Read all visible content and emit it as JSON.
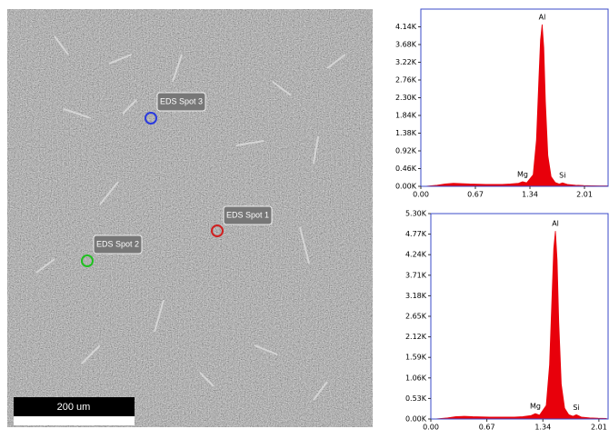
{
  "image": {
    "labels": [
      "EDS Spot 3",
      "EDS Spot 1",
      "EDS Spot 2"
    ],
    "scale_bar": "200 um"
  },
  "chart_data": [
    {
      "type": "area",
      "color": "#e8000b",
      "x": [
        0.05,
        0.2,
        0.3,
        0.4,
        0.5,
        0.6,
        0.7,
        0.8,
        0.9,
        1.0,
        1.1,
        1.2,
        1.25,
        1.3,
        1.38,
        1.42,
        1.45,
        1.47,
        1.49,
        1.51,
        1.53,
        1.56,
        1.6,
        1.65,
        1.7,
        1.74,
        1.8,
        1.9,
        2.0,
        2.1,
        2.2,
        2.3
      ],
      "values": [
        0,
        30,
        60,
        80,
        70,
        60,
        55,
        50,
        50,
        50,
        60,
        80,
        120,
        90,
        300,
        1200,
        2800,
        3800,
        4200,
        3600,
        2200,
        800,
        250,
        100,
        60,
        90,
        50,
        30,
        20,
        15,
        10,
        10
      ],
      "xlim": [
        0,
        2.3
      ],
      "xticks": [
        {
          "value": 0,
          "label": "0.00"
        },
        {
          "value": 0.67,
          "label": "0.67"
        },
        {
          "value": 1.34,
          "label": "1.34"
        },
        {
          "value": 2.01,
          "label": "2.01"
        }
      ],
      "ylim": [
        0,
        4600
      ],
      "yticks": [
        {
          "value": 0,
          "label": "0.00K"
        },
        {
          "value": 460,
          "label": "0.46K"
        },
        {
          "value": 920,
          "label": "0.92K"
        },
        {
          "value": 1380,
          "label": "1.38K"
        },
        {
          "value": 1840,
          "label": "1.84K"
        },
        {
          "value": 2300,
          "label": "2.30K"
        },
        {
          "value": 2760,
          "label": "2.76K"
        },
        {
          "value": 3220,
          "label": "3.22K"
        },
        {
          "value": 3680,
          "label": "3.68K"
        },
        {
          "value": 4140,
          "label": "4.14K"
        }
      ],
      "annotations": [
        {
          "text": "Al",
          "x": 1.49
        },
        {
          "text": "Mg",
          "x": 1.25
        },
        {
          "text": "Si",
          "x": 1.74
        }
      ]
    },
    {
      "type": "area",
      "color": "#e8000b",
      "x": [
        0.05,
        0.2,
        0.3,
        0.4,
        0.5,
        0.6,
        0.7,
        0.8,
        0.9,
        1.0,
        1.1,
        1.2,
        1.25,
        1.3,
        1.38,
        1.42,
        1.45,
        1.47,
        1.49,
        1.51,
        1.53,
        1.56,
        1.6,
        1.65,
        1.7,
        1.74,
        1.8,
        1.9,
        2.0,
        2.1
      ],
      "values": [
        0,
        30,
        60,
        70,
        60,
        55,
        50,
        50,
        50,
        50,
        60,
        90,
        140,
        100,
        350,
        1400,
        3200,
        4400,
        4850,
        4100,
        2500,
        900,
        280,
        110,
        70,
        110,
        50,
        30,
        20,
        15
      ],
      "xlim": [
        0,
        2.12
      ],
      "xticks": [
        {
          "value": 0,
          "label": "0.00"
        },
        {
          "value": 0.67,
          "label": "0.67"
        },
        {
          "value": 1.34,
          "label": "1.34"
        },
        {
          "value": 2.01,
          "label": "2.01"
        }
      ],
      "ylim": [
        0,
        5300
      ],
      "yticks": [
        {
          "value": 0,
          "label": "0.00K"
        },
        {
          "value": 530,
          "label": "0.53K"
        },
        {
          "value": 1060,
          "label": "1.06K"
        },
        {
          "value": 1590,
          "label": "1.59K"
        },
        {
          "value": 2120,
          "label": "2.12K"
        },
        {
          "value": 2650,
          "label": "2.65K"
        },
        {
          "value": 3180,
          "label": "3.18K"
        },
        {
          "value": 3710,
          "label": "3.71K"
        },
        {
          "value": 4240,
          "label": "4.24K"
        },
        {
          "value": 4770,
          "label": "4.77K"
        },
        {
          "value": 5300,
          "label": "5.30K"
        }
      ],
      "annotations": [
        {
          "text": "Al",
          "x": 1.49
        },
        {
          "text": "Mg",
          "x": 1.25
        },
        {
          "text": "Si",
          "x": 1.74
        }
      ]
    }
  ]
}
